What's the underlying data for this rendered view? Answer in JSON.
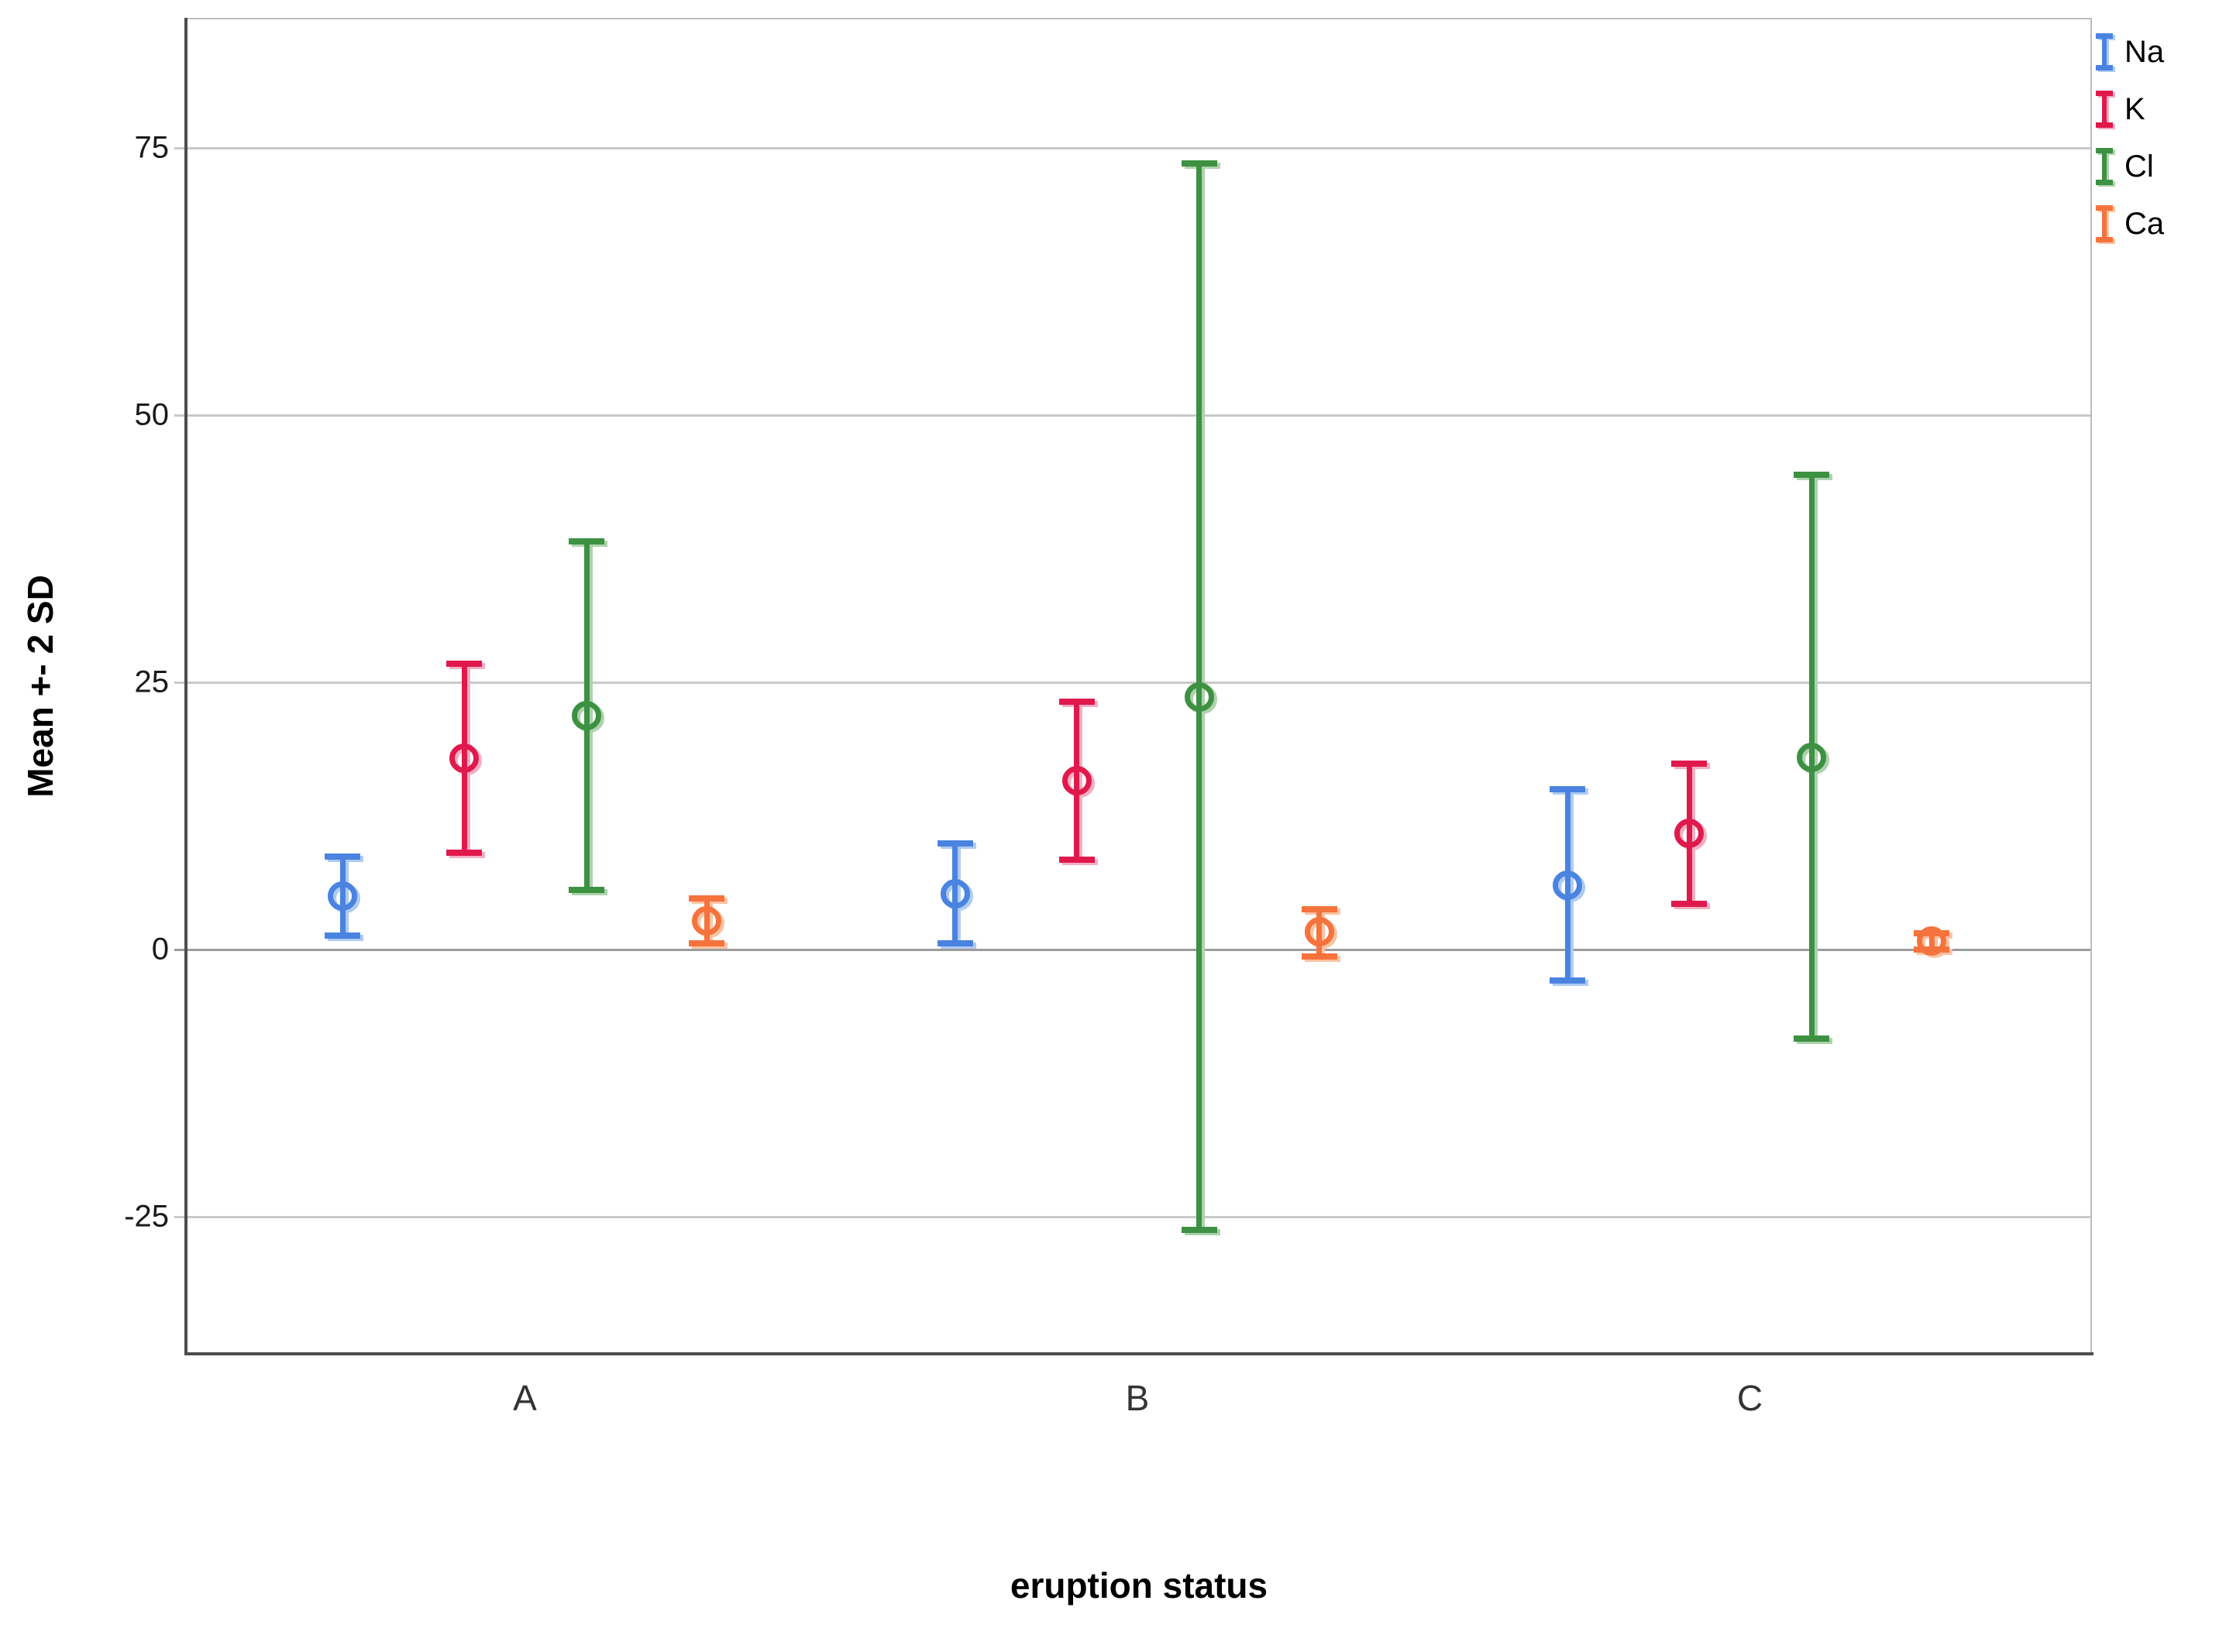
{
  "chart_data": {
    "type": "errorbar",
    "title": "",
    "xlabel": "eruption status",
    "ylabel": "Mean +- 2 SD",
    "categories": [
      "A",
      "B",
      "C"
    ],
    "series": [
      {
        "name": "Na",
        "color": "#4a83e0",
        "halo": "#aecbf2",
        "values": [
          {
            "mean": 5.0,
            "lo": 1.0,
            "hi": 9.0
          },
          {
            "mean": 5.2,
            "lo": 0.3,
            "hi": 10.2
          },
          {
            "mean": 6.0,
            "lo": -3.2,
            "hi": 15.3
          }
        ]
      },
      {
        "name": "K",
        "color": "#e0194d",
        "halo": "#f3aec2",
        "values": [
          {
            "mean": 17.9,
            "lo": 8.8,
            "hi": 27.0
          },
          {
            "mean": 15.8,
            "lo": 8.1,
            "hi": 23.5
          },
          {
            "mean": 10.9,
            "lo": 4.0,
            "hi": 17.7
          }
        ]
      },
      {
        "name": "Cl",
        "color": "#3d9142",
        "halo": "#aed2ad",
        "values": [
          {
            "mean": 21.9,
            "lo": 5.3,
            "hi": 38.5
          },
          {
            "mean": 23.6,
            "lo": -26.5,
            "hi": 73.8
          },
          {
            "mean": 18.0,
            "lo": -8.6,
            "hi": 44.7
          }
        ]
      },
      {
        "name": "Ca",
        "color": "#f5733c",
        "halo": "#fac4a4",
        "values": [
          {
            "mean": 2.7,
            "lo": 0.3,
            "hi": 5.1
          },
          {
            "mean": 1.7,
            "lo": -0.9,
            "hi": 4.1
          },
          {
            "mean": 0.8,
            "lo": -0.3,
            "hi": 1.8
          }
        ]
      }
    ],
    "yticks": [
      75,
      50,
      25,
      0,
      -25
    ],
    "ylim": [
      -37.8,
      87
    ],
    "grid": true,
    "legend_position": "top-right",
    "zero_line_color": "#9c9c9c",
    "grid_color": "#c9c9c9"
  }
}
